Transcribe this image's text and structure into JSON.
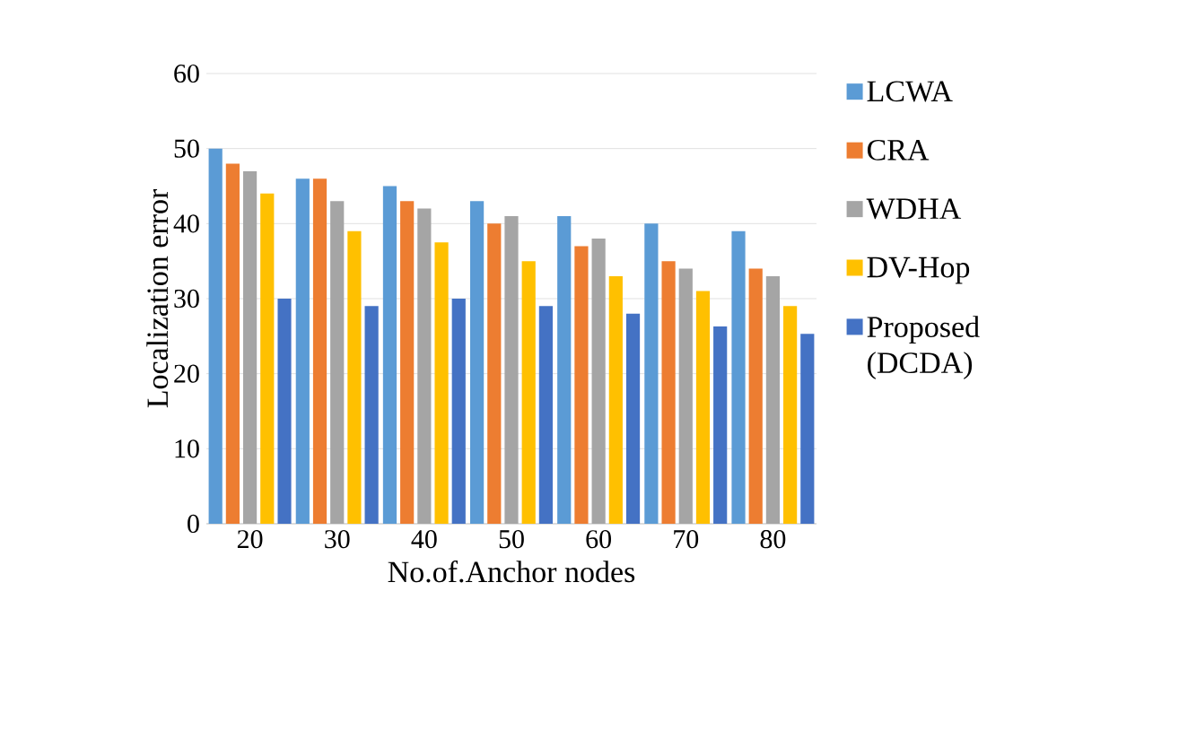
{
  "chart_data": {
    "type": "bar",
    "xlabel": "No.of.Anchor nodes",
    "ylabel": "Localization error",
    "categories": [
      "20",
      "30",
      "40",
      "50",
      "60",
      "70",
      "80"
    ],
    "series": [
      {
        "name": "LCWA",
        "color": "#5b9bd5",
        "values": [
          50,
          46,
          45,
          43,
          41,
          40,
          39
        ]
      },
      {
        "name": "CRA",
        "color": "#ed7d31",
        "values": [
          48,
          46,
          43,
          40,
          37,
          35,
          34
        ]
      },
      {
        "name": "WDHA",
        "color": "#a5a5a5",
        "values": [
          47,
          43,
          42,
          41,
          38,
          34,
          33
        ]
      },
      {
        "name": "DV-Hop",
        "color": "#ffc000",
        "values": [
          44,
          39,
          37.5,
          35,
          33,
          31,
          29
        ]
      },
      {
        "name": "Proposed (DCDA)",
        "color": "#4472c4",
        "values": [
          30,
          29,
          30,
          29,
          28,
          26.3,
          25.3
        ]
      }
    ],
    "ylim": [
      0,
      60
    ],
    "yticks": [
      0,
      10,
      20,
      30,
      40,
      50,
      60
    ],
    "grid": "y",
    "legend": "right"
  }
}
